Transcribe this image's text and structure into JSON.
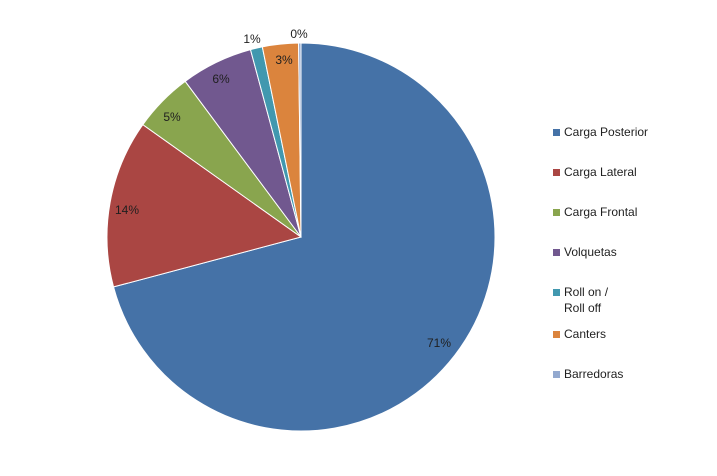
{
  "chart_data": {
    "type": "pie",
    "title": "",
    "start_angle_deg": 0,
    "direction": "clockwise",
    "slices": [
      {
        "label": "Carga Posterior",
        "value": 71,
        "display": "71%",
        "color": "#4572A7"
      },
      {
        "label": "Carga Lateral",
        "value": 14,
        "display": "14%",
        "color": "#AA4643"
      },
      {
        "label": "Carga Frontal",
        "value": 5,
        "display": "5%",
        "color": "#89A54E"
      },
      {
        "label": "Volquetas",
        "value": 6,
        "display": "6%",
        "color": "#71588F"
      },
      {
        "label": "Roll on /\nRoll off",
        "value": 1,
        "display": "1%",
        "color": "#4198AF"
      },
      {
        "label": "Canters",
        "value": 3,
        "display": "3%",
        "color": "#DB843D"
      },
      {
        "label": "Barredoras",
        "value": 0.2,
        "display": "0%",
        "color": "#93A9CF"
      }
    ],
    "legend": {
      "placement": "right",
      "items": [
        "Carga Posterior",
        "Carga Lateral",
        "Carga Frontal",
        "Volquetas",
        "Roll on /\nRoll off",
        "Canters",
        "Barredoras"
      ]
    }
  }
}
